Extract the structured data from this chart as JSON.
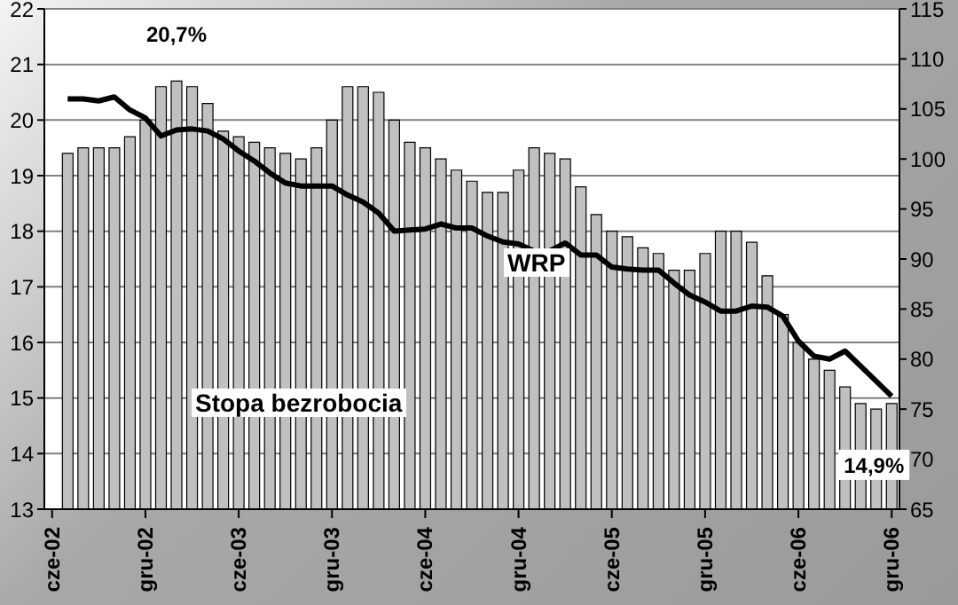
{
  "chart_data": {
    "type": "bar",
    "categories": [
      "cze-02",
      null,
      null,
      null,
      null,
      null,
      "gru-02",
      null,
      null,
      null,
      null,
      null,
      "cze-03",
      null,
      null,
      null,
      null,
      null,
      "gru-03",
      null,
      null,
      null,
      null,
      null,
      "cze-04",
      null,
      null,
      null,
      null,
      null,
      "gru-04",
      null,
      null,
      null,
      null,
      null,
      "cze-05",
      null,
      null,
      null,
      null,
      null,
      "gru-05",
      null,
      null,
      null,
      null,
      null,
      "cze-06",
      null,
      null,
      null,
      null,
      null,
      "gru-06"
    ],
    "series": [
      {
        "name": "Stopa bezrobocia",
        "color": "#c0c0c0",
        "values": [
          null,
          19.4,
          19.5,
          19.5,
          19.5,
          19.7,
          20.0,
          20.6,
          20.7,
          20.6,
          20.3,
          19.8,
          19.7,
          19.6,
          19.5,
          19.4,
          19.3,
          19.5,
          20.0,
          20.6,
          20.6,
          20.5,
          20.0,
          19.6,
          19.5,
          19.3,
          19.1,
          18.9,
          18.7,
          18.7,
          19.1,
          19.5,
          19.4,
          19.3,
          18.8,
          18.3,
          18.0,
          17.9,
          17.7,
          17.6,
          17.3,
          17.3,
          17.6,
          18.0,
          18.0,
          17.8,
          17.2,
          16.5,
          16.0,
          15.7,
          15.5,
          15.2,
          14.9,
          14.8,
          14.9
        ]
      },
      {
        "name": "WRP",
        "type": "line",
        "axis": "y2",
        "color": "#000000",
        "values": [
          null,
          106.0,
          106.0,
          105.8,
          106.2,
          104.9,
          104.1,
          102.3,
          102.9,
          103.0,
          102.8,
          102.0,
          100.8,
          99.8,
          98.6,
          97.6,
          97.3,
          97.3,
          97.3,
          96.4,
          95.7,
          94.6,
          92.8,
          92.9,
          93.0,
          93.5,
          93.1,
          93.1,
          92.3,
          91.7,
          91.5,
          90.8,
          90.8,
          91.6,
          90.4,
          90.4,
          89.2,
          89.0,
          88.9,
          88.9,
          87.6,
          86.4,
          85.7,
          84.8,
          84.8,
          85.3,
          85.2,
          84.3,
          81.8,
          80.3,
          80.0,
          80.8,
          79.3,
          77.8,
          76.3
        ]
      }
    ],
    "ylim": [
      13,
      22
    ],
    "yticks": [
      13,
      14,
      15,
      16,
      17,
      18,
      19,
      20,
      21,
      22
    ],
    "y2lim": [
      65,
      115
    ],
    "y2ticks": [
      65,
      70,
      75,
      80,
      85,
      90,
      95,
      100,
      105,
      110,
      115
    ],
    "grid": "y",
    "legend": false,
    "annotations": [
      {
        "text": "20,7%",
        "y": 20.7
      },
      {
        "text": "14,9%",
        "x": "gru-06",
        "y": 14.9
      }
    ]
  }
}
